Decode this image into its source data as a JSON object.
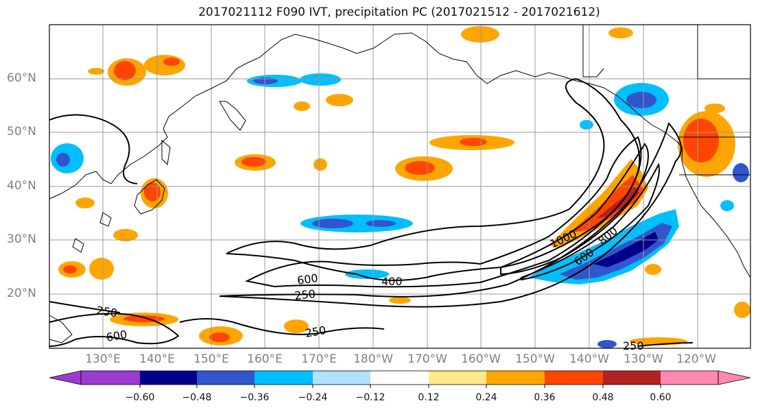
{
  "title": "2017021112 F090 IVT, precipitation PC (2017021512 - 2017021612)",
  "map": {
    "lat_labels": [
      "60°N",
      "50°N",
      "40°N",
      "30°N",
      "20°N"
    ],
    "lon_labels": [
      "130°E",
      "140°E",
      "150°E",
      "160°E",
      "170°E",
      "180°W",
      "170°W",
      "160°W",
      "150°W",
      "140°W",
      "130°W",
      "120°W"
    ],
    "ivt_contour_labels": [
      "250",
      "600",
      "250",
      "600",
      "400",
      "250",
      "1000",
      "600",
      "800",
      "250"
    ],
    "grid_color": "#999999",
    "contour_color": "#000000"
  },
  "colorbar": {
    "colors": [
      "#9a3cd0",
      "#00008b",
      "#3355cc",
      "#00bfff",
      "#b0e2ff",
      "#ffffff",
      "#ffe98a",
      "#ffa500",
      "#ff4500",
      "#b22222",
      "#ff88b0"
    ],
    "tick_labels": [
      "−0.60",
      "−0.48",
      "−0.36",
      "−0.24",
      "−0.12",
      "0.12",
      "0.24",
      "0.36",
      "0.48",
      "0.60"
    ]
  }
}
